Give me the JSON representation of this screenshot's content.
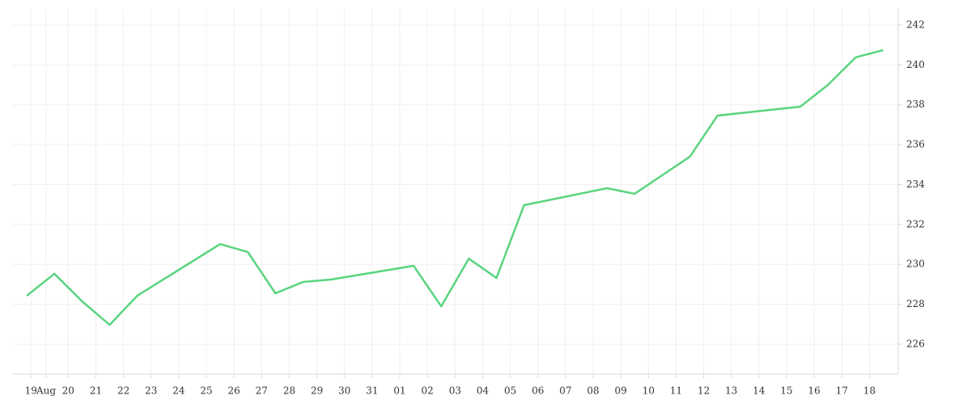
{
  "chart_data": {
    "type": "line",
    "x": [
      0,
      1,
      2,
      3,
      4,
      7,
      8,
      9,
      10,
      11,
      14,
      15,
      16,
      17,
      18,
      21,
      22,
      23,
      24,
      25,
      28,
      29,
      30,
      31
    ],
    "series": [
      {
        "color": "#5ad47e",
        "values": [
          228.43,
          229.53,
          228.15,
          226.97,
          228.43,
          231.02,
          230.62,
          228.55,
          229.12,
          229.24,
          229.93,
          227.9,
          230.29,
          229.32,
          232.97,
          233.82,
          233.54,
          234.47,
          235.4,
          237.46,
          237.91,
          239.0,
          240.38,
          240.74
        ]
      }
    ],
    "xlim": [
      -0.53,
      31.54
    ],
    "xticks": [
      {
        "value": 0.15,
        "label": "19"
      },
      {
        "value": 0.7,
        "label": "Aug"
      },
      {
        "value": 1.5,
        "label": "20"
      },
      {
        "value": 2.5,
        "label": "21"
      },
      {
        "value": 3.5,
        "label": "22"
      },
      {
        "value": 4.5,
        "label": "23"
      },
      {
        "value": 5.5,
        "label": "24"
      },
      {
        "value": 6.5,
        "label": "25"
      },
      {
        "value": 7.5,
        "label": "26"
      },
      {
        "value": 8.5,
        "label": "27"
      },
      {
        "value": 9.5,
        "label": "28"
      },
      {
        "value": 10.5,
        "label": "29"
      },
      {
        "value": 11.5,
        "label": "30"
      },
      {
        "value": 12.5,
        "label": "31"
      },
      {
        "value": 13.5,
        "label": "01"
      },
      {
        "value": 14.5,
        "label": "02"
      },
      {
        "value": 15.5,
        "label": "03"
      },
      {
        "value": 16.5,
        "label": "04"
      },
      {
        "value": 17.5,
        "label": "05"
      },
      {
        "value": 18.5,
        "label": "06"
      },
      {
        "value": 19.5,
        "label": "07"
      },
      {
        "value": 20.5,
        "label": "08"
      },
      {
        "value": 21.5,
        "label": "09"
      },
      {
        "value": 22.5,
        "label": "10"
      },
      {
        "value": 23.5,
        "label": "11"
      },
      {
        "value": 24.5,
        "label": "12"
      },
      {
        "value": 25.5,
        "label": "13"
      },
      {
        "value": 26.5,
        "label": "14"
      },
      {
        "value": 27.5,
        "label": "15"
      },
      {
        "value": 28.5,
        "label": "16"
      },
      {
        "value": 29.5,
        "label": "17"
      },
      {
        "value": 30.5,
        "label": "18"
      }
    ],
    "ylim": [
      224.5,
      242.85
    ],
    "yticks": [
      226,
      228,
      230,
      232,
      234,
      236,
      238,
      240,
      242
    ],
    "grid": true
  }
}
